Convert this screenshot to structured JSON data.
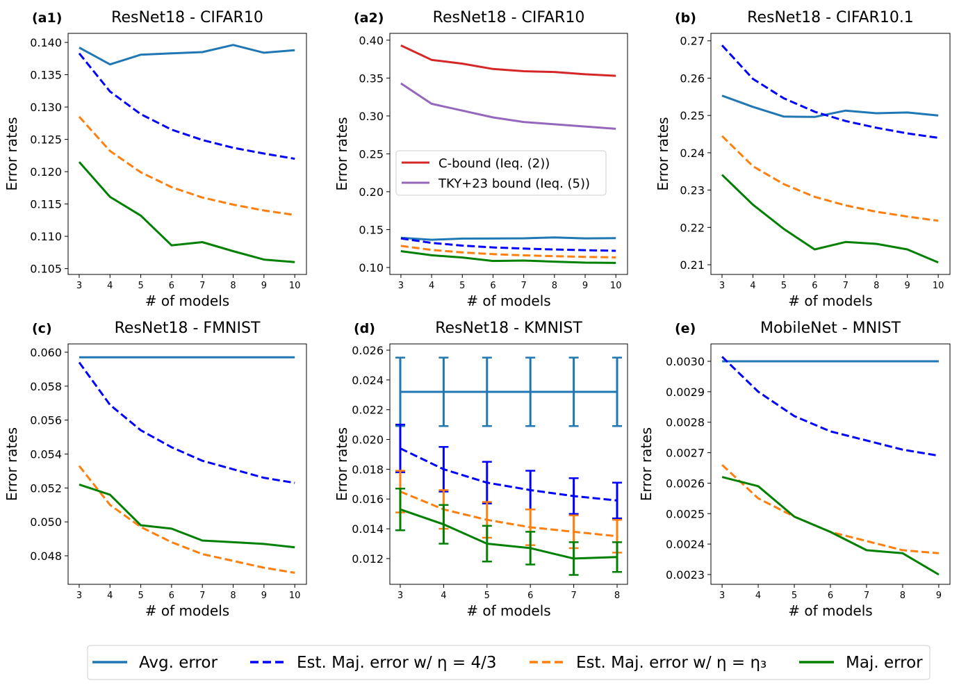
{
  "chart_data": [
    {
      "id": "a1",
      "type": "line",
      "panel_label": "(a1)",
      "title": "ResNet18 - CIFAR10",
      "xlabel": "# of models",
      "ylabel": "Error rates",
      "x": [
        3,
        4,
        5,
        6,
        7,
        8,
        9,
        10
      ],
      "xlim": [
        2.64,
        10.38
      ],
      "ylim": [
        0.1041,
        0.1414
      ],
      "yticks": [
        0.105,
        0.11,
        0.115,
        0.12,
        0.125,
        0.13,
        0.135,
        0.14
      ],
      "ytick_labels": [
        "0.105",
        "0.110",
        "0.115",
        "0.120",
        "0.125",
        "0.130",
        "0.135",
        "0.140"
      ],
      "xtick_labels": [
        "3",
        "4",
        "5",
        "6",
        "7",
        "8",
        "9",
        "10"
      ],
      "series": [
        {
          "key": "avg",
          "values": [
            0.1392,
            0.1366,
            0.1381,
            0.1383,
            0.1385,
            0.1396,
            0.1384,
            0.1388
          ]
        },
        {
          "key": "est43",
          "values": [
            0.1383,
            0.1324,
            0.1289,
            0.1265,
            0.1249,
            0.1237,
            0.1228,
            0.122
          ]
        },
        {
          "key": "esteta3",
          "values": [
            0.1285,
            0.1232,
            0.1199,
            0.1176,
            0.116,
            0.1149,
            0.114,
            0.1133
          ]
        },
        {
          "key": "maj",
          "values": [
            0.1215,
            0.1161,
            0.1132,
            0.1086,
            0.1091,
            0.1077,
            0.1064,
            0.106
          ]
        }
      ]
    },
    {
      "id": "a2",
      "type": "line",
      "panel_label": "(a2)",
      "title": "ResNet18 - CIFAR10",
      "xlabel": "# of models",
      "ylabel": "Error rates",
      "x": [
        3,
        4,
        5,
        6,
        7,
        8,
        9,
        10
      ],
      "xlim": [
        2.64,
        10.38
      ],
      "ylim": [
        0.0908,
        0.409
      ],
      "yticks": [
        0.1,
        0.15,
        0.2,
        0.25,
        0.3,
        0.35,
        0.4
      ],
      "ytick_labels": [
        "0.10",
        "0.15",
        "0.20",
        "0.25",
        "0.30",
        "0.35",
        "0.40"
      ],
      "xtick_labels": [
        "3",
        "4",
        "5",
        "6",
        "7",
        "8",
        "9",
        "10"
      ],
      "legend": {
        "placement": "center-left",
        "entries": [
          {
            "key": "cbound",
            "label": "C-bound (Ieq. (2))"
          },
          {
            "key": "tky",
            "label": "TKY+23 bound (Ieq. (5))"
          }
        ]
      },
      "series": [
        {
          "key": "cbound",
          "values": [
            0.393,
            0.374,
            0.369,
            0.362,
            0.359,
            0.358,
            0.355,
            0.353
          ]
        },
        {
          "key": "tky",
          "values": [
            0.343,
            0.316,
            0.307,
            0.298,
            0.292,
            0.289,
            0.286,
            0.283
          ]
        },
        {
          "key": "avg",
          "values": [
            0.1392,
            0.1366,
            0.1381,
            0.1383,
            0.1385,
            0.1396,
            0.1384,
            0.1388
          ]
        },
        {
          "key": "est43",
          "values": [
            0.1383,
            0.1324,
            0.1289,
            0.1265,
            0.1249,
            0.1237,
            0.1228,
            0.122
          ]
        },
        {
          "key": "esteta3",
          "values": [
            0.1285,
            0.1232,
            0.1199,
            0.1176,
            0.116,
            0.1149,
            0.114,
            0.1133
          ]
        },
        {
          "key": "maj",
          "values": [
            0.1215,
            0.1161,
            0.1132,
            0.1086,
            0.1091,
            0.1077,
            0.1064,
            0.106
          ]
        }
      ]
    },
    {
      "id": "b",
      "type": "line",
      "panel_label": "(b)",
      "title": "ResNet18 - CIFAR10.1",
      "xlabel": "# of models",
      "ylabel": "Error rates",
      "x": [
        3,
        4,
        5,
        6,
        7,
        8,
        9,
        10
      ],
      "xlim": [
        2.64,
        10.38
      ],
      "ylim": [
        0.2074,
        0.272
      ],
      "yticks": [
        0.21,
        0.22,
        0.23,
        0.24,
        0.25,
        0.26,
        0.27
      ],
      "ytick_labels": [
        "0.21",
        "0.22",
        "0.23",
        "0.24",
        "0.25",
        "0.26",
        "0.27"
      ],
      "xtick_labels": [
        "3",
        "4",
        "5",
        "6",
        "7",
        "8",
        "9",
        "10"
      ],
      "series": [
        {
          "key": "avg",
          "values": [
            0.2553,
            0.2523,
            0.2497,
            0.2496,
            0.2513,
            0.2506,
            0.2508,
            0.25
          ]
        },
        {
          "key": "est43",
          "values": [
            0.2688,
            0.2598,
            0.2546,
            0.251,
            0.2485,
            0.2467,
            0.2452,
            0.244
          ]
        },
        {
          "key": "esteta3",
          "values": [
            0.2445,
            0.2364,
            0.2316,
            0.2282,
            0.2259,
            0.2242,
            0.2229,
            0.2218
          ]
        },
        {
          "key": "maj",
          "values": [
            0.2341,
            0.2261,
            0.2196,
            0.2141,
            0.2161,
            0.2156,
            0.2141,
            0.2106
          ]
        }
      ]
    },
    {
      "id": "c",
      "type": "line",
      "panel_label": "(c)",
      "title": "ResNet18 - FMNIST",
      "xlabel": "# of models",
      "ylabel": "Error rates",
      "x": [
        3,
        4,
        5,
        6,
        7,
        8,
        9,
        10
      ],
      "xlim": [
        2.64,
        10.38
      ],
      "ylim": [
        0.04632,
        0.06049
      ],
      "yticks": [
        0.048,
        0.05,
        0.052,
        0.054,
        0.056,
        0.058,
        0.06
      ],
      "ytick_labels": [
        "0.048",
        "0.050",
        "0.052",
        "0.054",
        "0.056",
        "0.058",
        "0.060"
      ],
      "xtick_labels": [
        "3",
        "4",
        "5",
        "6",
        "7",
        "8",
        "9",
        "10"
      ],
      "series": [
        {
          "key": "avg",
          "values": [
            0.0597,
            0.0597,
            0.0597,
            0.0597,
            0.0597,
            0.0597,
            0.0597,
            0.0597
          ]
        },
        {
          "key": "est43",
          "values": [
            0.0594,
            0.0569,
            0.0554,
            0.0544,
            0.0536,
            0.0531,
            0.0526,
            0.0523
          ]
        },
        {
          "key": "esteta3",
          "values": [
            0.0533,
            0.051,
            0.0497,
            0.0488,
            0.0481,
            0.0477,
            0.0473,
            0.047
          ]
        },
        {
          "key": "maj",
          "values": [
            0.0522,
            0.0516,
            0.0498,
            0.0496,
            0.0489,
            0.0488,
            0.0487,
            0.0485
          ]
        }
      ]
    },
    {
      "id": "d",
      "type": "line",
      "panel_label": "(d)",
      "title": "ResNet18 - KMNIST",
      "xlabel": "# of models",
      "ylabel": "Error rates",
      "x": [
        3,
        4,
        5,
        6,
        7,
        8
      ],
      "xlim": [
        2.76,
        8.24
      ],
      "ylim": [
        0.01027,
        0.02642
      ],
      "yticks": [
        0.012,
        0.014,
        0.016,
        0.018,
        0.02,
        0.022,
        0.024,
        0.026
      ],
      "ytick_labels": [
        "0.012",
        "0.014",
        "0.016",
        "0.018",
        "0.020",
        "0.022",
        "0.024",
        "0.026"
      ],
      "xtick_labels": [
        "3",
        "4",
        "5",
        "6",
        "7",
        "8"
      ],
      "series": [
        {
          "key": "avg",
          "values": [
            0.0232,
            0.0232,
            0.0232,
            0.0232,
            0.0232,
            0.0232
          ],
          "errors": [
            0.0023,
            0.0023,
            0.0023,
            0.0023,
            0.0023,
            0.0023
          ]
        },
        {
          "key": "est43",
          "values": [
            0.0194,
            0.018,
            0.0171,
            0.0166,
            0.0162,
            0.0159
          ],
          "errors": [
            0.0016,
            0.0015,
            0.0014,
            0.0013,
            0.0012,
            0.0012
          ]
        },
        {
          "key": "esteta3",
          "values": [
            0.0165,
            0.0153,
            0.0146,
            0.0141,
            0.0138,
            0.0135
          ],
          "errors": [
            0.0014,
            0.0013,
            0.0012,
            0.0012,
            0.0011,
            0.0011
          ]
        },
        {
          "key": "maj",
          "values": [
            0.0153,
            0.0143,
            0.013,
            0.0127,
            0.012,
            0.0121
          ],
          "errors": [
            0.0014,
            0.0013,
            0.0012,
            0.0011,
            0.0011,
            0.001
          ]
        }
      ]
    },
    {
      "id": "e",
      "type": "line",
      "panel_label": "(e)",
      "title": "MobileNet - MNIST",
      "xlabel": "# of models",
      "ylabel": "Error rates",
      "x": [
        3,
        4,
        5,
        6,
        7,
        8,
        9
      ],
      "xlim": [
        2.69,
        9.31
      ],
      "ylim": [
        0.002268,
        0.003057
      ],
      "yticks": [
        0.0023,
        0.0024,
        0.0025,
        0.0026,
        0.0027,
        0.0028,
        0.0029,
        0.003
      ],
      "ytick_labels": [
        "0.0023",
        "0.0024",
        "0.0025",
        "0.0026",
        "0.0027",
        "0.0028",
        "0.0029",
        "0.0030"
      ],
      "xtick_labels": [
        "3",
        "4",
        "5",
        "6",
        "7",
        "8",
        "9"
      ],
      "series": [
        {
          "key": "avg",
          "values": [
            0.003,
            0.003,
            0.003,
            0.003,
            0.003,
            0.003,
            0.003
          ]
        },
        {
          "key": "est43",
          "values": [
            0.003015,
            0.0029,
            0.00282,
            0.00277,
            0.00274,
            0.00271,
            0.00269
          ]
        },
        {
          "key": "esteta3",
          "values": [
            0.00266,
            0.00255,
            0.00249,
            0.00244,
            0.00241,
            0.00238,
            0.00237
          ]
        },
        {
          "key": "maj",
          "values": [
            0.00262,
            0.00259,
            0.00249,
            0.00244,
            0.00238,
            0.00237,
            0.0023
          ]
        }
      ]
    }
  ],
  "series_styles": {
    "avg": {
      "color": "#1f77b4",
      "dashed": false
    },
    "est43": {
      "color": "#0000ff",
      "dashed": true
    },
    "esteta3": {
      "color": "#ff7f0e",
      "dashed": true
    },
    "maj": {
      "color": "#008000",
      "dashed": false
    },
    "cbound": {
      "color": "#d62728",
      "dashed": false
    },
    "tky": {
      "color": "#9467bd",
      "dashed": false
    }
  },
  "legend": {
    "placement": "bottom",
    "entries": [
      {
        "key": "avg",
        "label": "Avg. error"
      },
      {
        "key": "est43",
        "label": "Est. Maj. error w/ η = 4/3"
      },
      {
        "key": "esteta3",
        "label": "Est. Maj. error w/ η = η₃"
      },
      {
        "key": "maj",
        "label": "Maj. error"
      }
    ]
  }
}
